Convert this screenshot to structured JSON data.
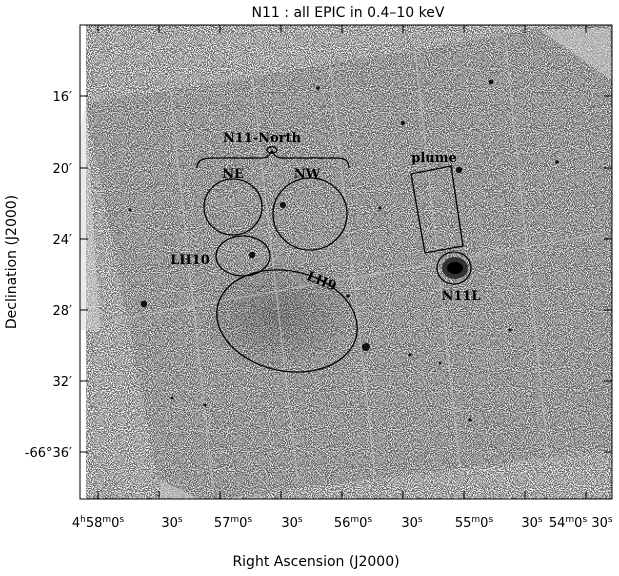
{
  "title": "N11 : all EPIC in 0.4–10 keV",
  "x_axis": {
    "label": "Right Ascension (J2000)",
    "ticks": [
      {
        "h": "4",
        "hs": "h",
        "m": "58",
        "ms": "m",
        "s": "0",
        "ss": "s"
      },
      {
        "s": "30",
        "ss": "s"
      },
      {
        "m": "57",
        "ms": "m",
        "s": "0",
        "ss": "s"
      },
      {
        "s": "30",
        "ss": "s"
      },
      {
        "m": "56",
        "ms": "m",
        "s": "0",
        "ss": "s"
      },
      {
        "s": "30",
        "ss": "s"
      },
      {
        "m": "55",
        "ms": "m",
        "s": "0",
        "ss": "s"
      },
      {
        "s": "30",
        "ss": "s"
      },
      {
        "m": "54",
        "ms": "m",
        "s": "0",
        "ss": "s"
      },
      {
        "s": "30",
        "ss": "s"
      }
    ]
  },
  "y_axis": {
    "label": "Declination (J2000)",
    "ticks": [
      {
        "text": "16′"
      },
      {
        "text": "20′"
      },
      {
        "text": "24′"
      },
      {
        "text": "28′"
      },
      {
        "text": "32′"
      },
      {
        "text": "-66°36′"
      }
    ]
  },
  "regions": {
    "n11_north": "N11-North",
    "ne": "NE",
    "nw": "NW",
    "lh10": "LH10",
    "lh9": "LH9",
    "plume": "plume",
    "n11l": "N11L"
  }
}
